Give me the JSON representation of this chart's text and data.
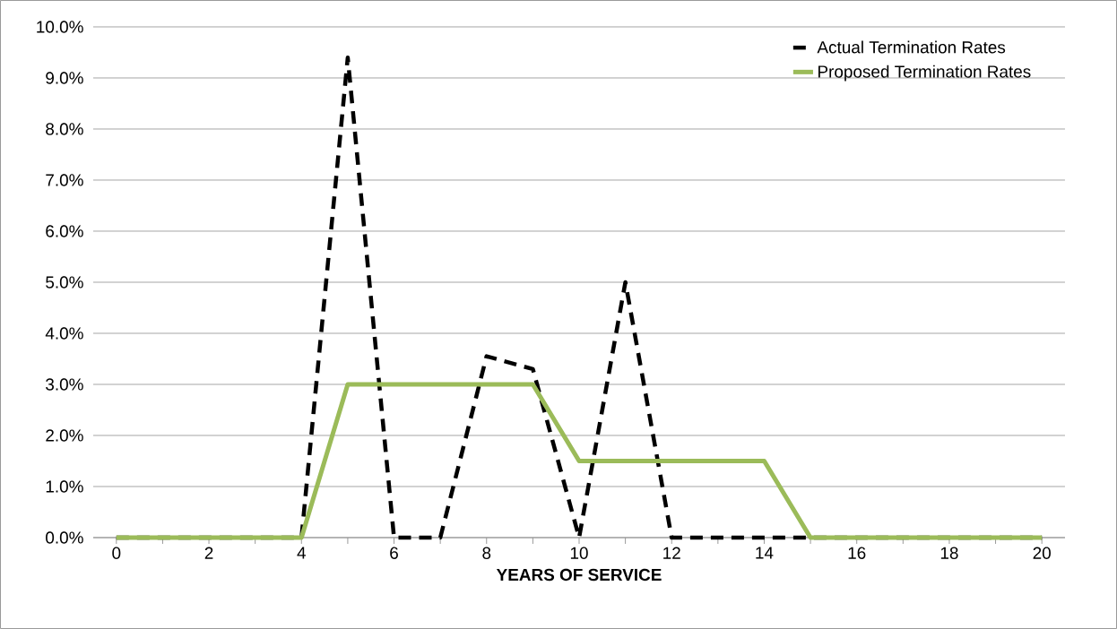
{
  "chart_data": {
    "type": "line",
    "xlabel": "YEARS OF SERVICE",
    "x": [
      0,
      1,
      2,
      3,
      4,
      5,
      6,
      7,
      8,
      9,
      10,
      11,
      12,
      13,
      14,
      15,
      16,
      17,
      18,
      19,
      20
    ],
    "series": [
      {
        "name": "Actual Termination Rates",
        "color": "#000000",
        "line_style": "dashed",
        "values": [
          0,
          0,
          0,
          0,
          0,
          9.4,
          0,
          0,
          3.55,
          3.3,
          0,
          5.0,
          0,
          0,
          0,
          0,
          0,
          0,
          0,
          0,
          0
        ]
      },
      {
        "name": "Proposed Termination Rates",
        "color": "#9bbb59",
        "line_style": "solid",
        "values": [
          0,
          0,
          0,
          0,
          0,
          3.0,
          3.0,
          3.0,
          3.0,
          3.0,
          1.5,
          1.5,
          1.5,
          1.5,
          1.5,
          0,
          0,
          0,
          0,
          0,
          0
        ]
      }
    ],
    "xlim": [
      -0.5,
      20.5
    ],
    "xticks": [
      0,
      {
        "value": 1,
        "label": null
      },
      2,
      {
        "value": 3,
        "label": null
      },
      4,
      {
        "value": 5,
        "label": null
      },
      6,
      {
        "value": 7,
        "label": null
      },
      8,
      {
        "value": 9,
        "label": null
      },
      10,
      {
        "value": 11,
        "label": null
      },
      12,
      {
        "value": 13,
        "label": null
      },
      14,
      {
        "value": 15,
        "label": null
      },
      16,
      {
        "value": 17,
        "label": null
      },
      18,
      {
        "value": 19,
        "label": null
      },
      20
    ],
    "ylim": [
      0,
      10
    ],
    "yticks": [
      {
        "value": 0,
        "label": "0.0%"
      },
      {
        "value": 1,
        "label": "1.0%"
      },
      {
        "value": 2,
        "label": "2.0%"
      },
      {
        "value": 3,
        "label": "3.0%"
      },
      {
        "value": 4,
        "label": "4.0%"
      },
      {
        "value": 5,
        "label": "5.0%"
      },
      {
        "value": 6,
        "label": "6.0%"
      },
      {
        "value": 7,
        "label": "7.0%"
      },
      {
        "value": 8,
        "label": "8.0%"
      },
      {
        "value": 9,
        "label": "9.0%"
      },
      {
        "value": 10,
        "label": "10.0%"
      }
    ],
    "grid": "y",
    "legend": "top right",
    "marker": "none"
  }
}
